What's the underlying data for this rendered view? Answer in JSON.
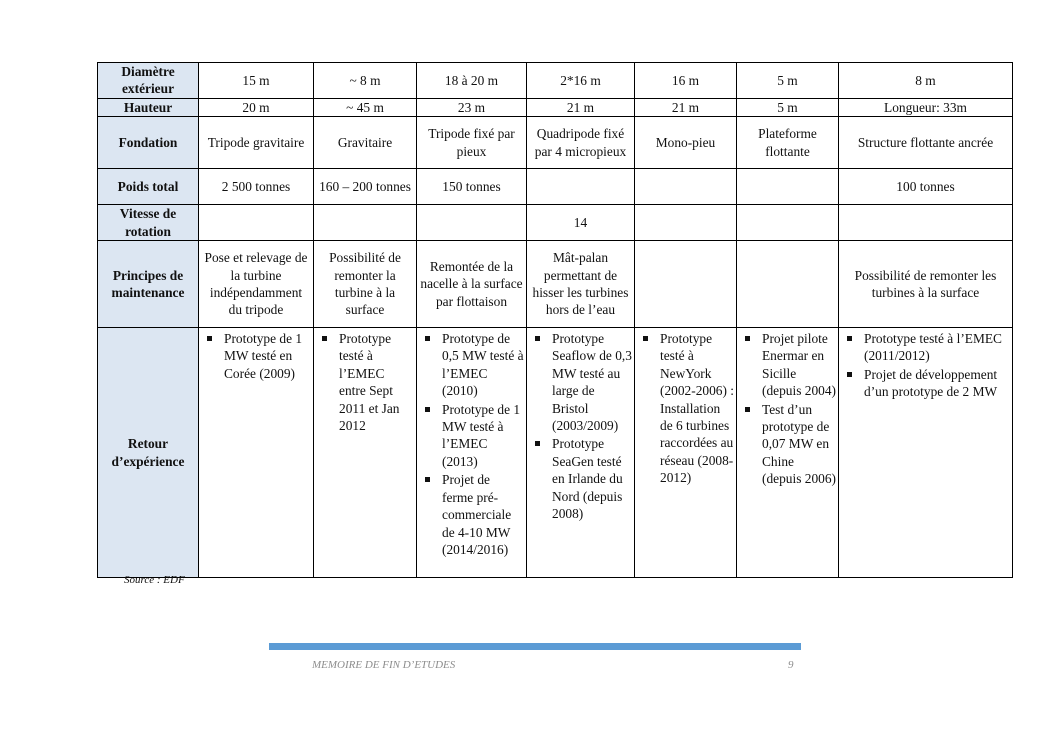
{
  "table": {
    "rows": [
      {
        "label": "Diamètre extérieur",
        "cells": [
          "15 m",
          "~ 8 m",
          "18 à 20 m",
          "2*16 m",
          "16 m",
          "5 m",
          "8 m"
        ]
      },
      {
        "label": "Hauteur",
        "cells": [
          "20 m",
          "~ 45 m",
          "23 m",
          "21 m",
          "21 m",
          "5 m",
          "Longueur: 33m"
        ]
      },
      {
        "label": "Fondation",
        "cells": [
          "Tripode gravitaire",
          "Gravitaire",
          "Tripode fixé par pieux",
          "Quadripode fixé par 4 micropieux",
          "Mono-pieu",
          "Plateforme flottante",
          "Structure flottante ancrée"
        ]
      },
      {
        "label": "Poids total",
        "cells": [
          "2 500 tonnes",
          "160 – 200 tonnes",
          "150 tonnes",
          "",
          "",
          "",
          "100 tonnes"
        ]
      },
      {
        "label": "Vitesse de rotation",
        "cells": [
          "",
          "",
          "",
          "14",
          "",
          "",
          ""
        ]
      },
      {
        "label": "Principes de maintenance",
        "cells": [
          "Pose et relevage de la turbine indépendamment du tripode",
          "Possibilité de remonter la turbine à la surface",
          "Remontée de la nacelle à la surface par flottaison",
          "Mât-palan permettant de hisser les turbines hors de l’eau",
          "",
          "",
          "Possibilité de remonter les turbines à la surface"
        ]
      },
      {
        "label": "Retour d’expérience",
        "cells": [
          [
            "Prototype de 1 MW testé en Corée (2009)"
          ],
          [
            "Prototype testé à l’EMEC entre Sept 2011 et Jan 2012"
          ],
          [
            "Prototype de 0,5 MW testé à l’EMEC (2010)",
            "Prototype de 1 MW testé à l’EMEC (2013)",
            "Projet de ferme pré-commerciale de 4-10 MW (2014/2016)"
          ],
          [
            "Prototype Seaflow de 0,3 MW testé au large de Bristol (2003/2009)",
            "Prototype SeaGen testé en Irlande du Nord (depuis 2008)"
          ],
          [
            "Prototype testé à NewYork (2002-2006) : Installation de 6 turbines raccordées au réseau (2008-2012)"
          ],
          [
            "Projet pilote Enermar en Sicille (depuis 2004)",
            "Test d’un prototype de 0,07 MW en Chine (depuis 2006)"
          ],
          [
            "Prototype testé à l’EMEC (2011/2012)",
            "Projet de développement d’un prototype de 2 MW"
          ]
        ]
      }
    ]
  },
  "source": "Source : EDF",
  "footer": {
    "title": "MEMOIRE DE FIN D’ETUDES",
    "page": "9",
    "bar_color": "#5b9bd5"
  }
}
